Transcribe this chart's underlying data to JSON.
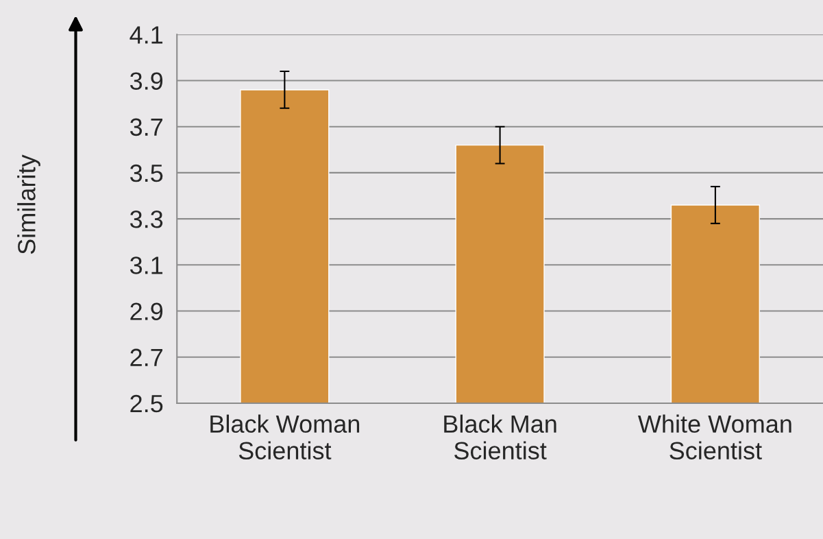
{
  "chart_data": {
    "type": "bar",
    "ylabel": "Similarity",
    "categories": [
      "Black Woman Scientist",
      "Black Man Scientist",
      "White Woman Scientist"
    ],
    "values": [
      3.86,
      3.62,
      3.36
    ],
    "errors": [
      0.08,
      0.08,
      0.08
    ],
    "color": "#d4913d",
    "ylim": [
      2.5,
      4.1
    ],
    "yticks": [
      2.5,
      2.7,
      2.9,
      3.1,
      3.3,
      3.5,
      3.7,
      3.9,
      4.1
    ],
    "grid": "y"
  }
}
